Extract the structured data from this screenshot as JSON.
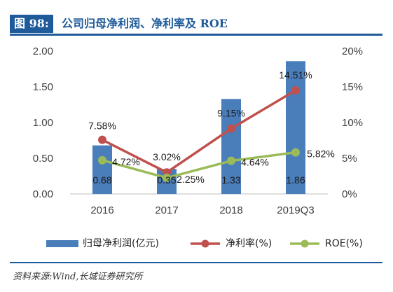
{
  "title": {
    "label": "图 98:",
    "text": "公司归母净利润、净利率及 ROE"
  },
  "source": "资料来源:Wind,长城证券研究所",
  "colors": {
    "bar": "#4a7ebb",
    "net_margin": "#c0504d",
    "roe": "#9bbb59",
    "title": "#1f5b9a"
  },
  "chart_data": {
    "type": "bar",
    "categories": [
      "2016",
      "2017",
      "2018",
      "2019Q3"
    ],
    "series": [
      {
        "name": "归母净利润(亿元)",
        "type": "bar",
        "axis": "left",
        "values": [
          0.68,
          0.35,
          1.33,
          1.86
        ],
        "labels": [
          "0.68",
          "0.35",
          "1.33",
          "1.86"
        ]
      },
      {
        "name": "净利率(%)",
        "type": "line",
        "axis": "right",
        "values": [
          7.58,
          3.02,
          9.15,
          14.51
        ],
        "labels": [
          "7.58%",
          "3.02%",
          "9.15%",
          "14.51%"
        ]
      },
      {
        "name": "ROE(%)",
        "type": "line",
        "axis": "right",
        "values": [
          4.72,
          2.25,
          4.64,
          5.82
        ],
        "labels": [
          "4.72%",
          "2.25%",
          "4.64%",
          "5.82%"
        ]
      }
    ],
    "y_left": {
      "ylim": [
        0,
        2
      ],
      "ticks": [
        "0.00",
        "0.50",
        "1.00",
        "1.50",
        "2.00"
      ]
    },
    "y_right": {
      "ylim": [
        0,
        20
      ],
      "ticks": [
        "0%",
        "5%",
        "10%",
        "15%",
        "20%"
      ]
    },
    "grid": false,
    "legend": "bottom"
  }
}
